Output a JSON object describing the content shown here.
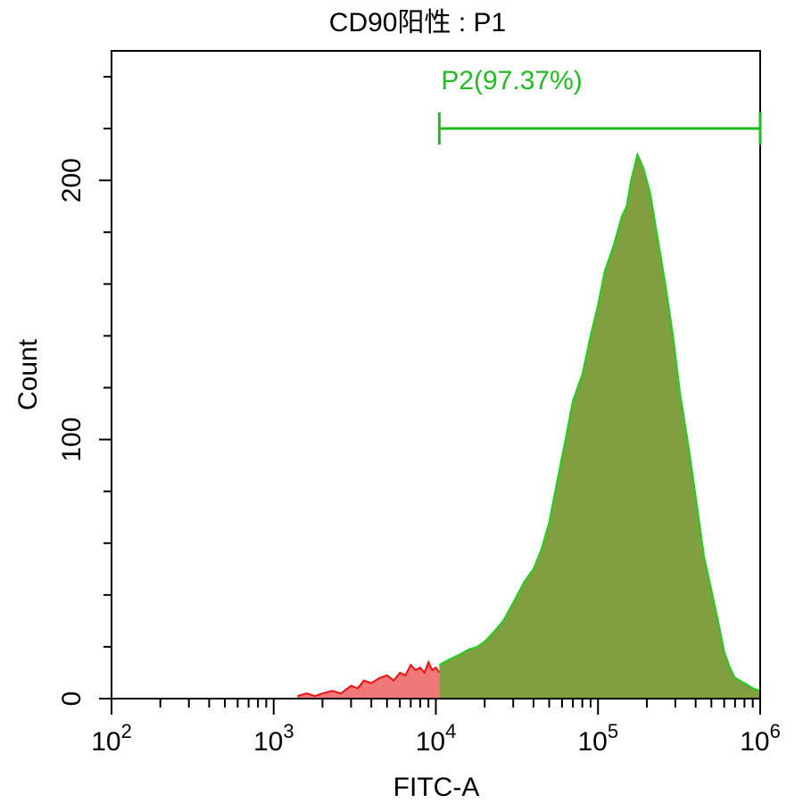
{
  "chart_data": {
    "type": "area",
    "title": "CD90阳性 : P1",
    "xlabel": "FITC-A",
    "ylabel": "Count",
    "xscale": "log",
    "xlim": [
      100,
      1000000
    ],
    "ylim": [
      0,
      250
    ],
    "x_ticks": [
      {
        "base": "10",
        "exp": "2",
        "value": 100
      },
      {
        "base": "10",
        "exp": "3",
        "value": 1000
      },
      {
        "base": "10",
        "exp": "4",
        "value": 10000
      },
      {
        "base": "10",
        "exp": "5",
        "value": 100000
      },
      {
        "base": "10",
        "exp": "6",
        "value": 1000000
      }
    ],
    "y_ticks": [
      {
        "label": "0",
        "value": 0
      },
      {
        "label": "100",
        "value": 100
      },
      {
        "label": "200",
        "value": 200
      }
    ],
    "gate": {
      "label": "P2(97.37%)",
      "x_start": 10500,
      "x_end": 1000000,
      "color": "#22bb22"
    },
    "series": [
      {
        "fill_color": "#f07878",
        "line_color": "#ee1111",
        "x": [
          1400,
          1600,
          1800,
          2000,
          2300,
          2600,
          3000,
          3300,
          3600,
          4000,
          4500,
          5000,
          5500,
          6000,
          6500,
          7000,
          7500,
          8000,
          8500,
          9000,
          9500,
          10000,
          10500
        ],
        "y": [
          1,
          2,
          1,
          2,
          3,
          2,
          5,
          4,
          7,
          6,
          8,
          9,
          7,
          10,
          9,
          13,
          11,
          12,
          10,
          14,
          11,
          12,
          10
        ]
      },
      {
        "fill_color": "#80a040",
        "line_color": "#22cc22",
        "x": [
          10500,
          12000,
          14000,
          16000,
          18000,
          20000,
          23000,
          26000,
          30000,
          35000,
          40000,
          45000,
          50000,
          56000,
          63000,
          70000,
          80000,
          90000,
          100000,
          110000,
          125000,
          140000,
          150000,
          160000,
          175000,
          190000,
          210000,
          230000,
          260000,
          290000,
          320000,
          360000,
          400000,
          450000,
          500000,
          550000,
          600000,
          650000,
          700000,
          800000,
          900000,
          1000000
        ],
        "y": [
          13,
          15,
          17,
          19,
          20,
          22,
          26,
          30,
          37,
          45,
          50,
          58,
          68,
          84,
          100,
          115,
          125,
          140,
          152,
          165,
          175,
          186,
          190,
          200,
          210,
          205,
          195,
          180,
          160,
          140,
          118,
          98,
          78,
          55,
          42,
          30,
          18,
          12,
          8,
          6,
          4,
          3
        ]
      }
    ]
  }
}
